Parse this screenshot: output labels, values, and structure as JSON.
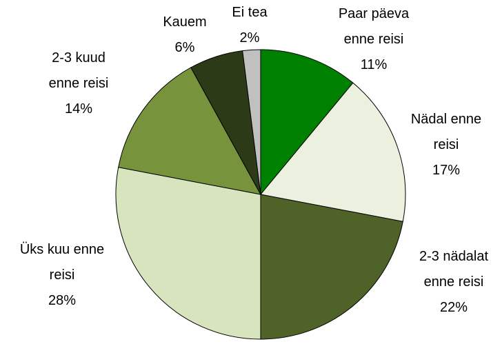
{
  "chart_data": {
    "type": "pie",
    "categories": [
      "Paar päeva enne reisi",
      "Nädal enne reisi",
      "2-3 nädalat enne reisi",
      "Üks kuu enne reisi",
      "2-3 kuud enne reisi",
      "Kauem",
      "Ei tea"
    ],
    "values": [
      11,
      17,
      22,
      28,
      14,
      6,
      2
    ],
    "value_labels": [
      "11%",
      "17%",
      "22%",
      "28%",
      "14%",
      "6%",
      "2%"
    ],
    "colors": [
      "#008000",
      "#ebf1de",
      "#4f6228",
      "#d7e4bd",
      "#77933c",
      "#2c3a17",
      "#c0c0c0"
    ]
  }
}
